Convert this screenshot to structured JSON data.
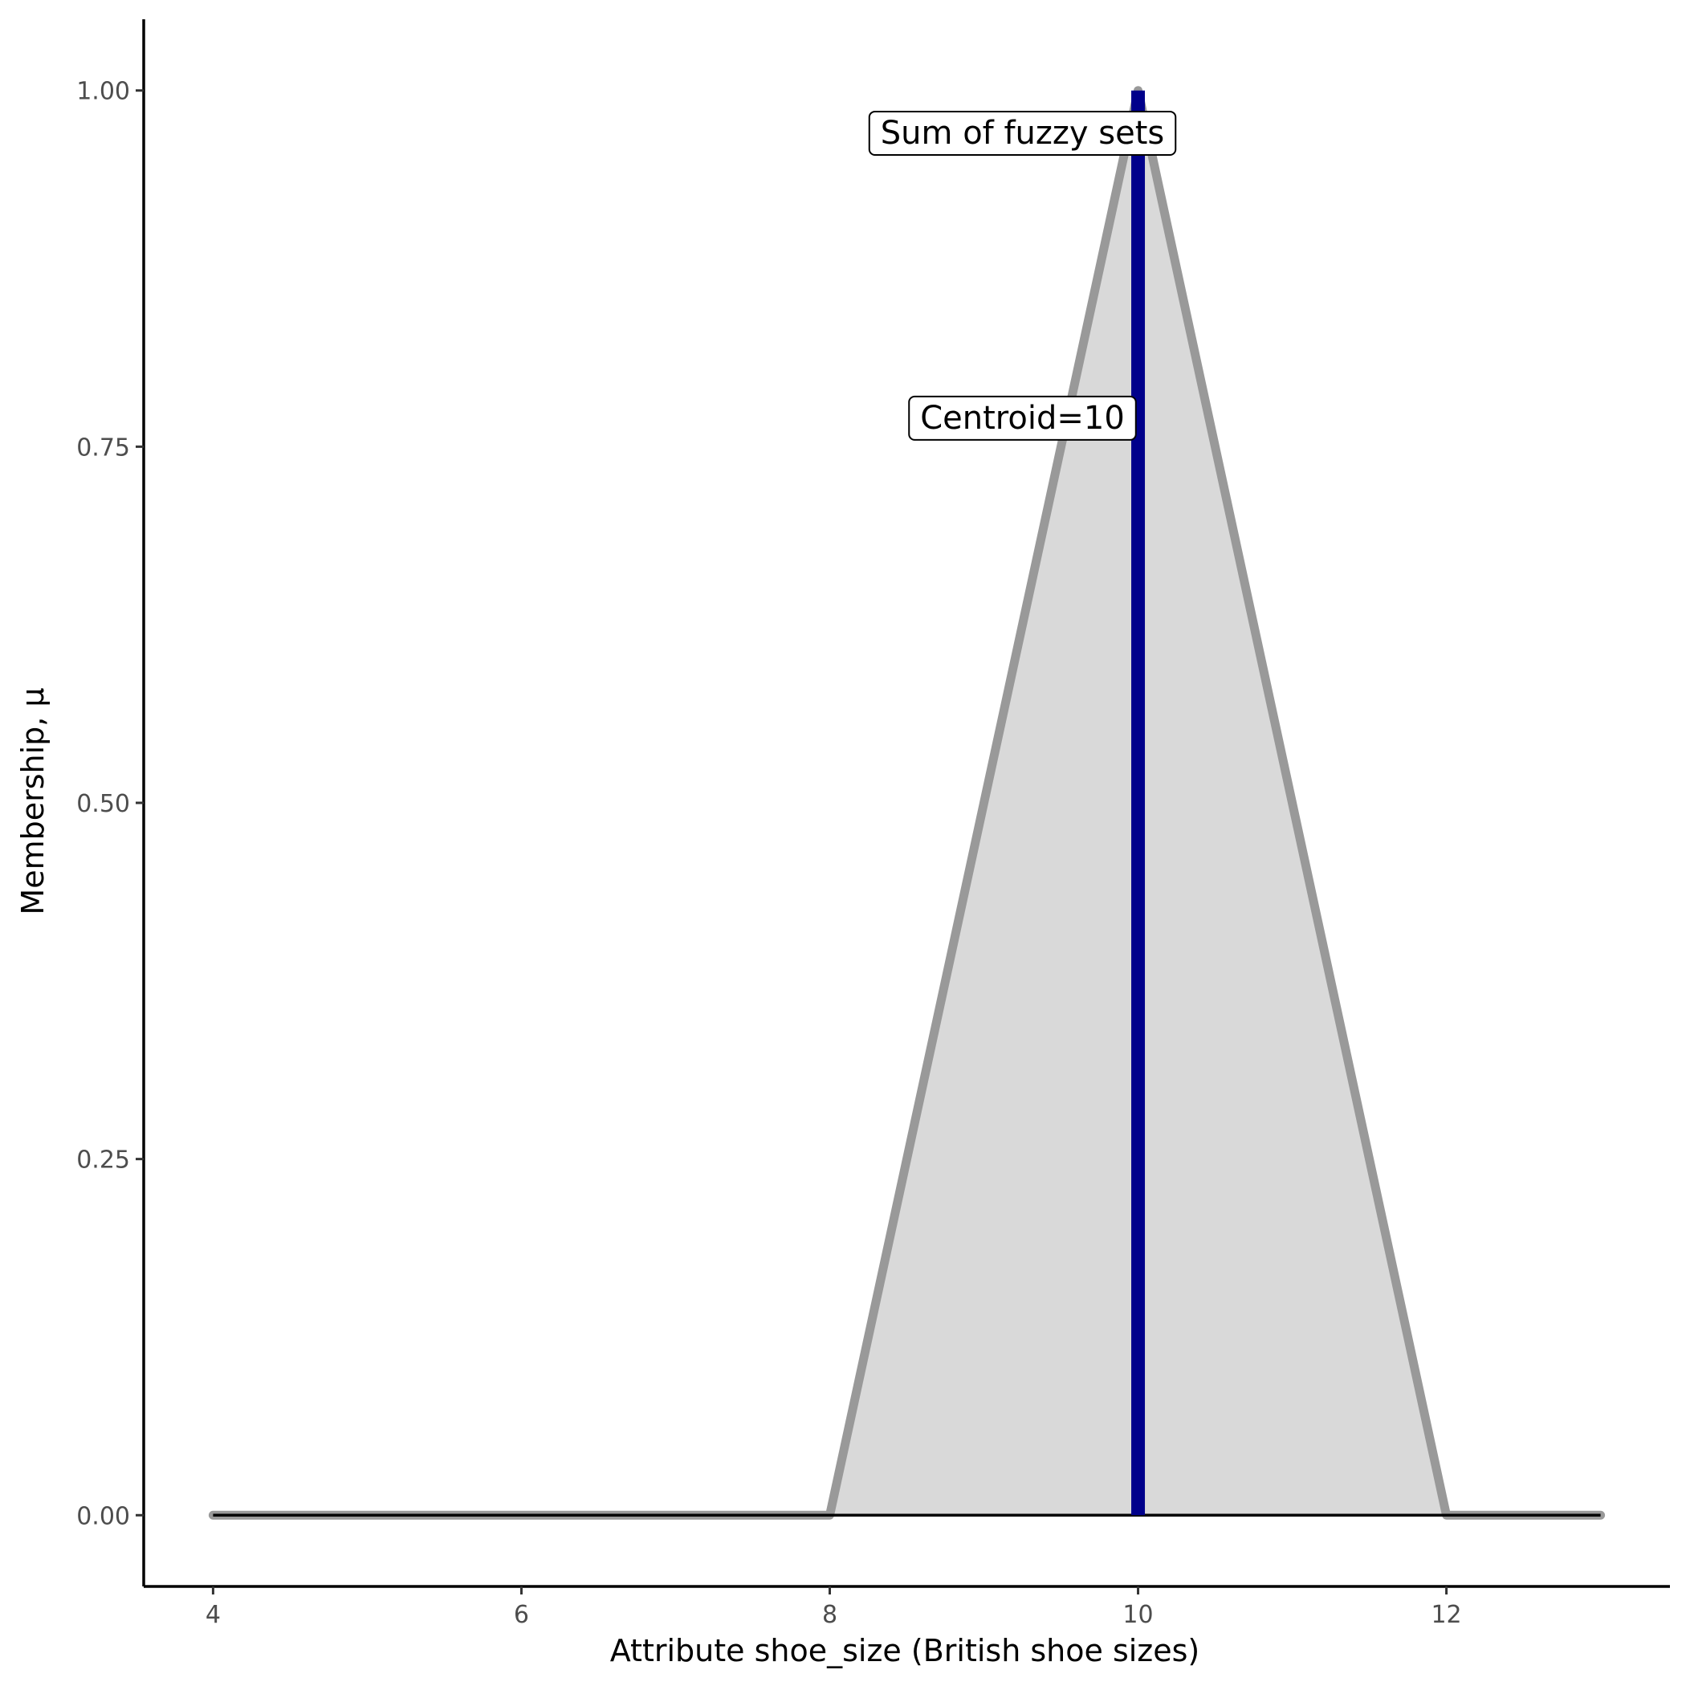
{
  "chart_data": {
    "type": "area",
    "title": "",
    "xlabel": "Attribute shoe_size (British shoe sizes)",
    "ylabel": "Membership, μ",
    "xlim": [
      3.55,
      13.45
    ],
    "ylim": [
      -0.05,
      1.05
    ],
    "x_ticks": [
      4,
      6,
      8,
      10,
      12
    ],
    "x_tick_labels": [
      "4",
      "6",
      "8",
      "10",
      "12"
    ],
    "y_ticks": [
      0,
      0.25,
      0.5,
      0.75,
      1
    ],
    "y_tick_labels": [
      "0.00",
      "0.25",
      "0.50",
      "0.75",
      "1.00"
    ],
    "grid": false,
    "series": [
      {
        "x": [
          4,
          8,
          10,
          12,
          13
        ],
        "y": [
          0,
          0,
          1,
          0,
          0
        ],
        "color": "#999999",
        "fill": "#d9d9d9"
      }
    ],
    "centroid": {
      "x": 10,
      "ymin": 0,
      "ymax": 1,
      "color": "#00008b"
    },
    "baseline": {
      "y": 0,
      "color": "#000000"
    },
    "annotations": [
      {
        "text": "Sum of fuzzy sets",
        "x": 9.25,
        "y": 0.97
      },
      {
        "text": "Centroid=10",
        "x": 9.25,
        "y": 0.77
      }
    ]
  }
}
